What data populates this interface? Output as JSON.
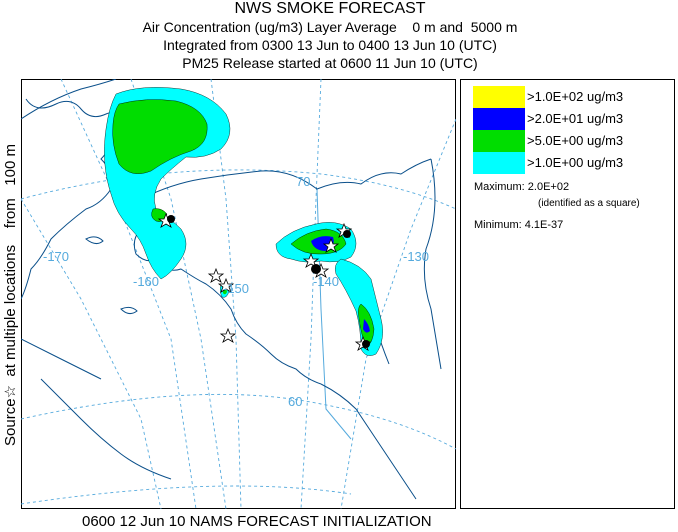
{
  "title": {
    "line1": "NWS SMOKE FORECAST",
    "line2": "Air Concentration (ug/m3) Layer Average    0 m and  5000 m",
    "line3": "Integrated from 0300 13 Jun to 0400 13 Jun 10 (UTC)",
    "line4": "PM25 Release started at 0600 11 Jun 10 (UTC)"
  },
  "side_label": "Source☆  at multiple locations    from   100 m",
  "footer": "0600 12 Jun 10 NAMS FORECAST INITIALIZATION",
  "legend": {
    "items": [
      {
        "label": ">1.0E+02 ug/m3",
        "color": "#ffff00"
      },
      {
        "label": ">2.0E+01 ug/m3",
        "color": "#0000ff"
      },
      {
        "label": ">5.0E+00 ug/m3",
        "color": "#00dd00"
      },
      {
        "label": ">1.0E+00 ug/m3",
        "color": "#00ffff"
      }
    ],
    "maximum": "Maximum: 2.0E+02",
    "maximum_note": "(identified as a square)",
    "minimum": "Minimum: 4.1E-37"
  },
  "map": {
    "graticule_labels": {
      "lon_170": "-170",
      "lon_160": "-160",
      "lon_150": "-150",
      "lon_140": "-140",
      "lon_130": "-130",
      "lat_70": "70",
      "lat_60": "60"
    },
    "graticule_color": "#55aadd",
    "coast_color": "#0a4f8a"
  }
}
